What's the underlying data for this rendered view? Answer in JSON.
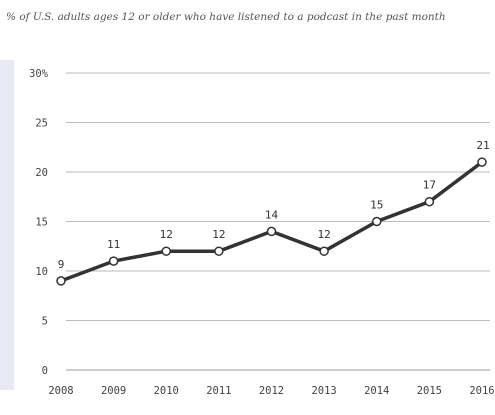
{
  "chart_data": {
    "type": "line",
    "subtitle": "% of U.S. adults ages 12 or older who have listened to a podcast in the past month",
    "categories": [
      "2008",
      "2009",
      "2010",
      "2011",
      "2012",
      "2013",
      "2014",
      "2015",
      "2016"
    ],
    "series": [
      {
        "values": [
          9,
          11,
          12,
          12,
          14,
          12,
          15,
          17,
          21
        ],
        "labels": [
          "9",
          "11",
          "12",
          "12",
          "14",
          "12",
          "15",
          "17",
          "21"
        ]
      }
    ],
    "y_ticks": [
      0,
      5,
      10,
      15,
      20,
      25,
      30
    ],
    "y_tick_labels": [
      "0",
      "5",
      "10",
      "15",
      "20",
      "25",
      "30%"
    ],
    "ylim": [
      0,
      30
    ],
    "grid": true,
    "legend": "none",
    "colors": {
      "line": "#333333",
      "grid": "#bbbbbb",
      "text": "#444444",
      "marker_fill": "#ffffff"
    }
  }
}
